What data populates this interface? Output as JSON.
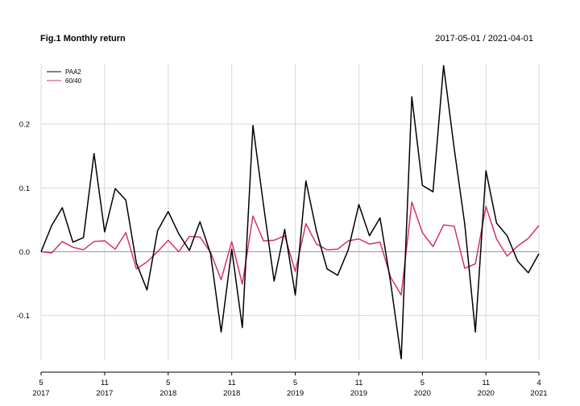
{
  "chart_data": {
    "type": "line",
    "title": "Fig.1 Monthly return",
    "date_range": "2017-05-01 / 2021-04-01",
    "xlabel": "",
    "ylabel": "",
    "ylim": [
      -0.17,
      0.295
    ],
    "y_ticks": [
      -0.1,
      0.0,
      0.1,
      0.2
    ],
    "y_tick_labels": [
      "-0.1",
      "0.0",
      "0.1",
      "0.2"
    ],
    "x_ticks": [
      {
        "index": 0,
        "month": "5",
        "year": "2017"
      },
      {
        "index": 6,
        "month": "11",
        "year": "2017"
      },
      {
        "index": 12,
        "month": "5",
        "year": "2018"
      },
      {
        "index": 18,
        "month": "11",
        "year": "2018"
      },
      {
        "index": 24,
        "month": "5",
        "year": "2019"
      },
      {
        "index": 30,
        "month": "11",
        "year": "2019"
      },
      {
        "index": 36,
        "month": "5",
        "year": "2020"
      },
      {
        "index": 42,
        "month": "11",
        "year": "2020"
      },
      {
        "index": 47,
        "month": "4",
        "year": "2021"
      }
    ],
    "grid": true,
    "legend_position": "top-left",
    "series": [
      {
        "name": "PAA2",
        "color": "#000000",
        "values": [
          0.0,
          0.041,
          0.069,
          0.015,
          0.022,
          0.154,
          0.031,
          0.099,
          0.081,
          -0.018,
          -0.06,
          0.033,
          0.063,
          0.028,
          0.002,
          0.047,
          -0.003,
          -0.126,
          0.004,
          -0.119,
          0.198,
          0.073,
          -0.046,
          0.035,
          -0.068,
          0.111,
          0.032,
          -0.027,
          -0.037,
          0.003,
          0.074,
          0.025,
          0.053,
          -0.048,
          -0.168,
          0.243,
          0.104,
          0.094,
          0.292,
          0.162,
          0.043,
          -0.126,
          0.127,
          0.045,
          0.025,
          -0.015,
          -0.033,
          -0.003
        ]
      },
      {
        "name": "60/40",
        "color": "#d6335e",
        "values": [
          0.0,
          -0.002,
          0.016,
          0.007,
          0.003,
          0.016,
          0.017,
          0.004,
          0.03,
          -0.027,
          -0.016,
          0.0,
          0.018,
          0.0,
          0.024,
          0.023,
          -0.001,
          -0.044,
          0.016,
          -0.051,
          0.056,
          0.017,
          0.018,
          0.025,
          -0.031,
          0.044,
          0.012,
          0.003,
          0.004,
          0.017,
          0.02,
          0.012,
          0.015,
          -0.04,
          -0.068,
          0.078,
          0.03,
          0.008,
          0.042,
          0.04,
          -0.026,
          -0.019,
          0.071,
          0.02,
          -0.007,
          0.009,
          0.021,
          0.041
        ]
      }
    ]
  }
}
